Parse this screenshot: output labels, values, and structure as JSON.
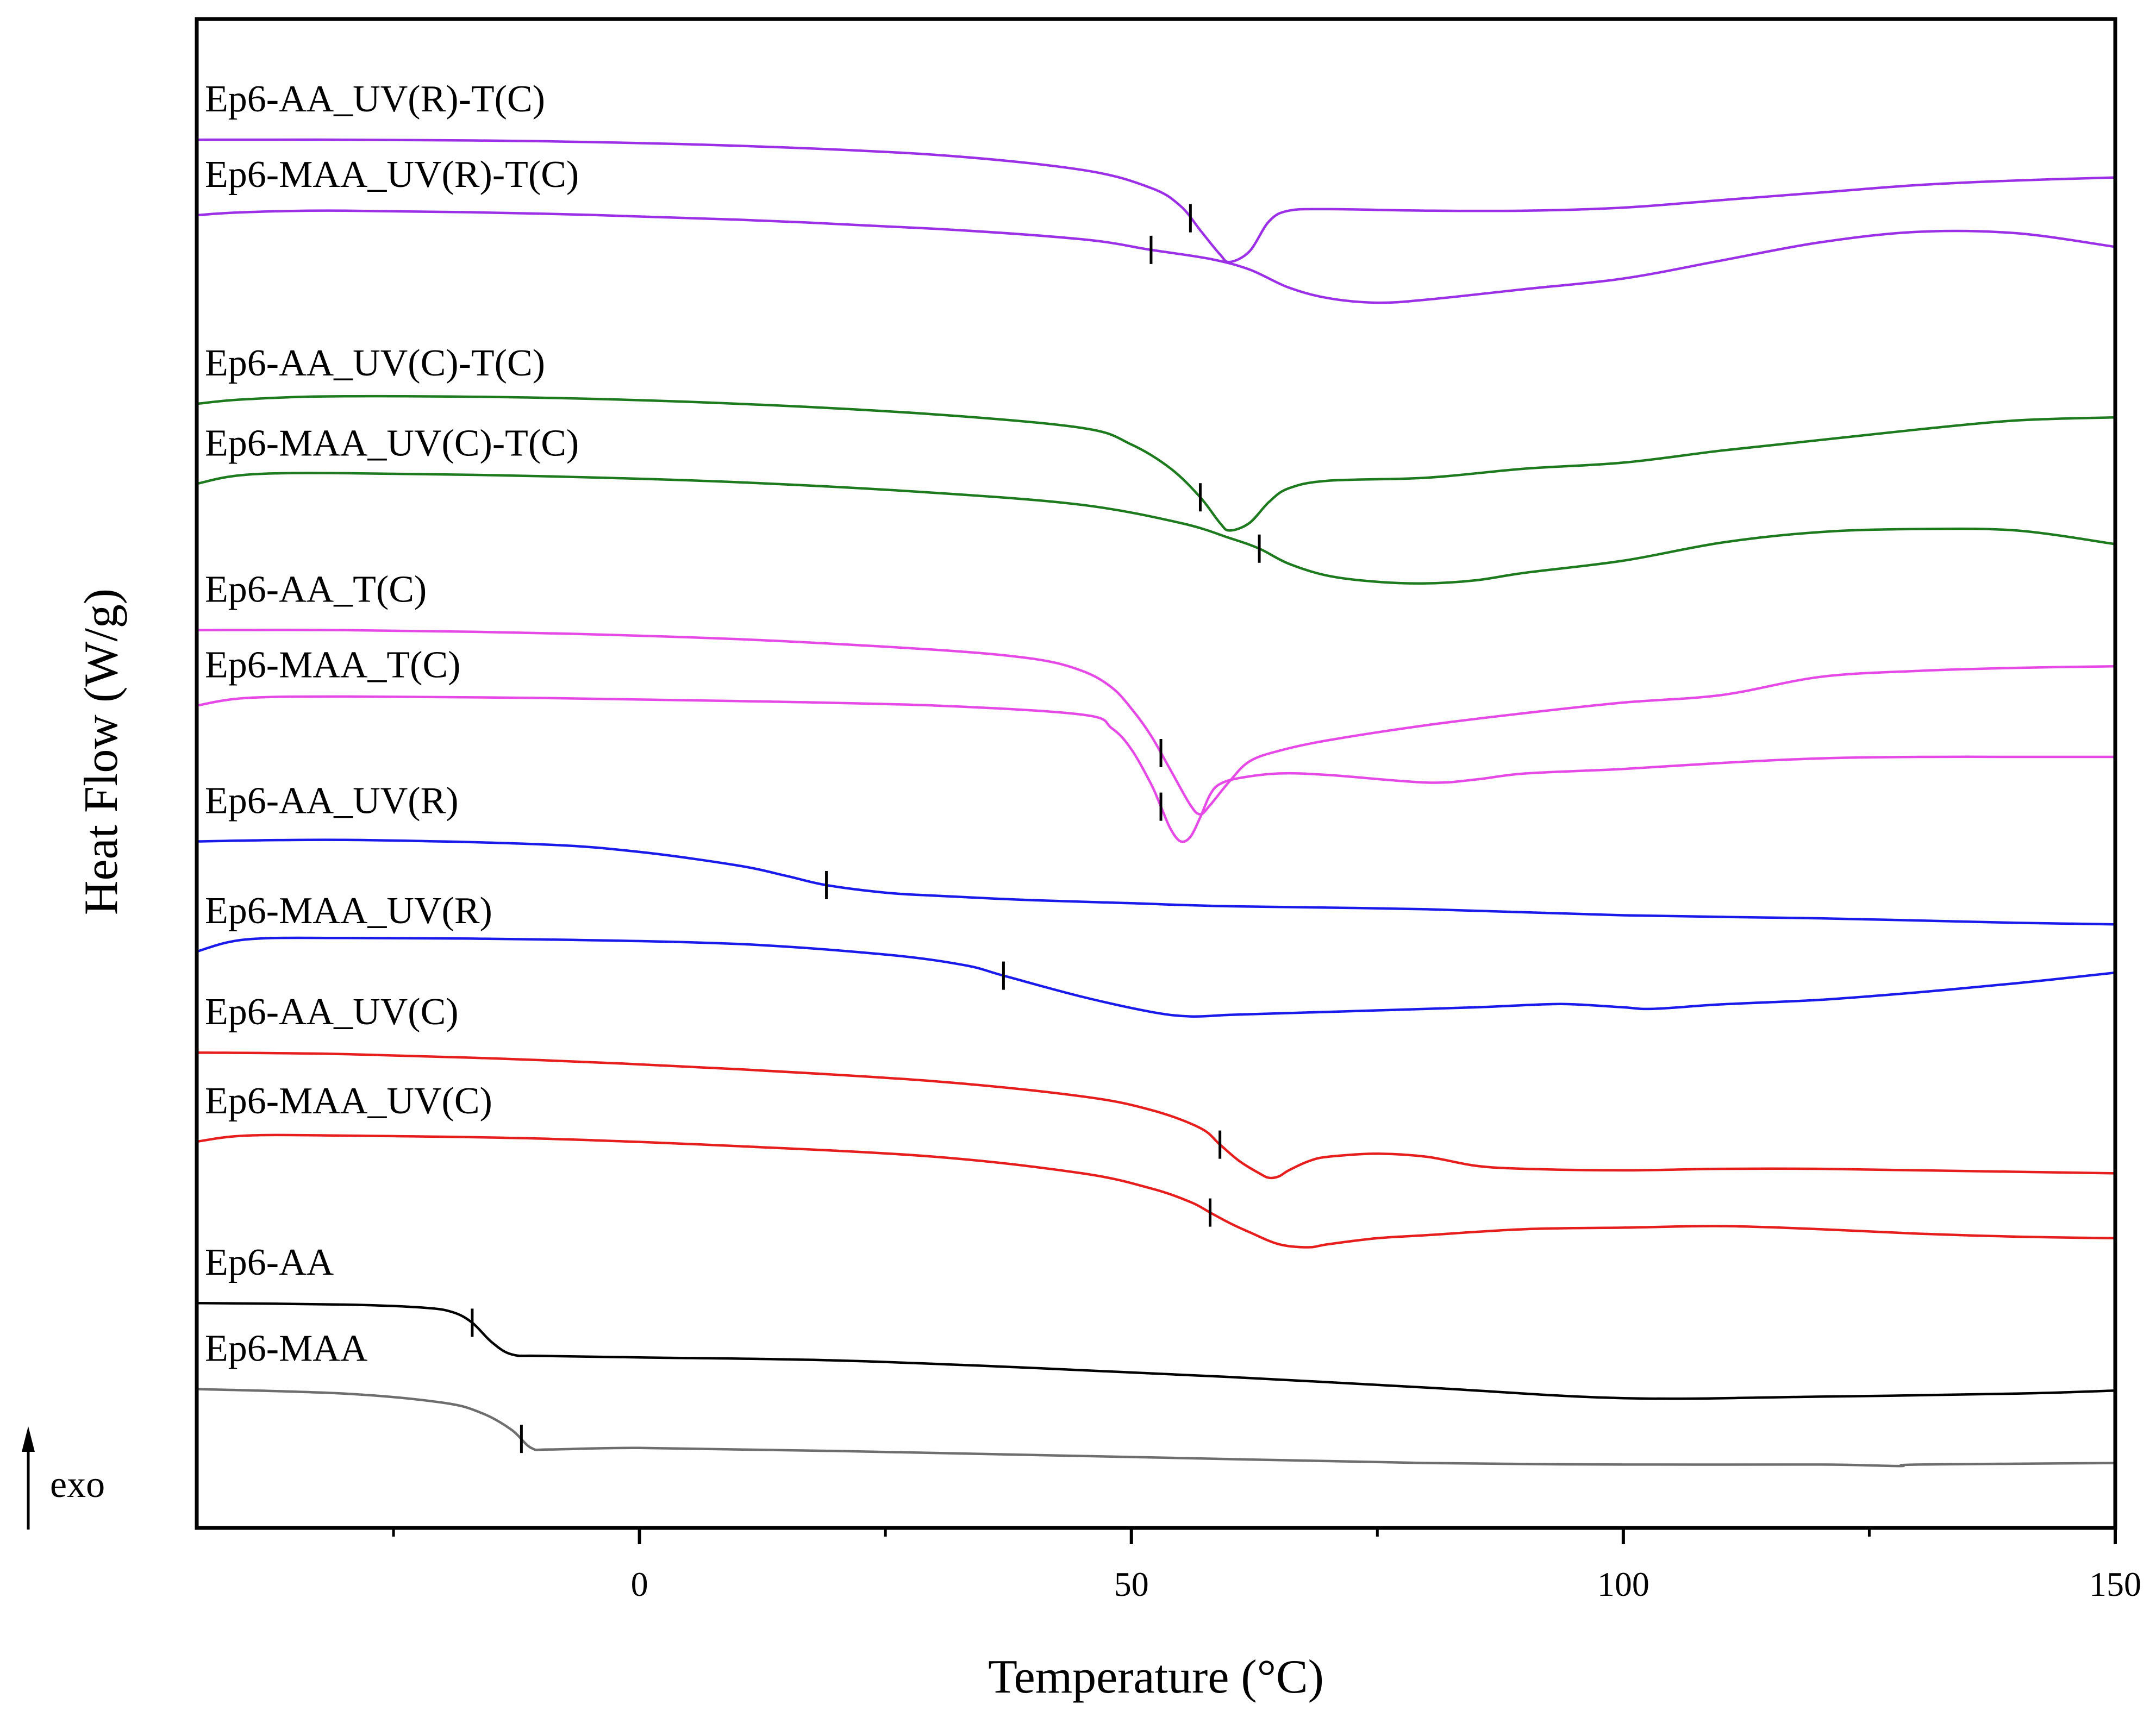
{
  "chart_data": {
    "type": "line",
    "xlabel": "Temperature (°C)",
    "ylabel": "Heat Flow (W/g)",
    "xlim": [
      -45,
      150
    ],
    "ylim": [
      0,
      100
    ],
    "xticks": [
      0,
      50,
      100,
      150
    ],
    "minor_xticks": [
      -25,
      25,
      75,
      125
    ],
    "grid": false,
    "legend": "none",
    "exo_label": "exo",
    "y_units": "arbitrary (stacked, offset curves)",
    "series": [
      {
        "name": "Ep6-AA_UV(R)-T(C)",
        "color": "#9b30e6",
        "x": [
          -45,
          -30,
          -10,
          10,
          30,
          45,
          52,
          55,
          57,
          59,
          60,
          62,
          64,
          66,
          70,
          80,
          90,
          100,
          110,
          120,
          130,
          140,
          150
        ],
        "y": [
          92.0,
          92.0,
          91.9,
          91.6,
          91.0,
          90.0,
          88.8,
          87.6,
          86.0,
          84.4,
          83.9,
          84.6,
          86.6,
          87.3,
          87.4,
          87.3,
          87.3,
          87.5,
          88.0,
          88.5,
          89.0,
          89.3,
          89.5
        ],
        "tg_x": 56
      },
      {
        "name": "Ep6-MAA_UV(R)-T(C)",
        "color": "#9b30e6",
        "x": [
          -45,
          -40,
          -30,
          -10,
          10,
          30,
          45,
          52,
          58,
          62,
          66,
          70,
          75,
          80,
          90,
          100,
          110,
          120,
          130,
          140,
          150
        ],
        "y": [
          87.0,
          87.2,
          87.3,
          87.1,
          86.7,
          86.1,
          85.4,
          84.7,
          84.1,
          83.4,
          82.2,
          81.5,
          81.2,
          81.4,
          82.1,
          82.8,
          84.0,
          85.2,
          85.9,
          85.8,
          84.9
        ],
        "tg_x": 52
      },
      {
        "name": "Ep6-AA_UV(C)-T(C)",
        "color": "#1e7a1e",
        "x": [
          -45,
          -40,
          -30,
          -10,
          10,
          30,
          45,
          50,
          54,
          57,
          59,
          60,
          62,
          64,
          66,
          70,
          80,
          90,
          100,
          110,
          120,
          130,
          140,
          150
        ],
        "y": [
          74.5,
          74.8,
          75.0,
          74.9,
          74.5,
          73.8,
          72.9,
          71.8,
          70.2,
          68.3,
          66.6,
          66.1,
          66.6,
          68.0,
          68.9,
          69.4,
          69.6,
          70.2,
          70.6,
          71.4,
          72.1,
          72.8,
          73.4,
          73.6
        ],
        "tg_x": 57
      },
      {
        "name": "Ep6-MAA_UV(C)-T(C)",
        "color": "#1e7a1e",
        "x": [
          -45,
          -40,
          -30,
          -10,
          10,
          30,
          45,
          55,
          60,
          63,
          66,
          70,
          75,
          80,
          85,
          90,
          100,
          110,
          120,
          130,
          140,
          150
        ],
        "y": [
          69.2,
          69.8,
          69.9,
          69.7,
          69.3,
          68.6,
          67.8,
          66.6,
          65.6,
          64.9,
          63.9,
          63.1,
          62.7,
          62.6,
          62.8,
          63.3,
          64.1,
          65.3,
          66.0,
          66.2,
          66.1,
          65.2
        ],
        "tg_x": 63
      },
      {
        "name": "Ep6-AA_T(C)",
        "color": "#e64ae6",
        "x": [
          -45,
          -30,
          -10,
          10,
          30,
          40,
          45,
          48,
          50,
          52,
          54,
          56,
          57,
          58,
          60,
          62,
          65,
          70,
          80,
          90,
          100,
          110,
          120,
          130,
          140,
          150
        ],
        "y": [
          59.5,
          59.5,
          59.3,
          58.9,
          58.2,
          57.6,
          56.8,
          55.7,
          54.3,
          52.5,
          50.2,
          47.9,
          47.3,
          47.9,
          49.5,
          50.8,
          51.5,
          52.2,
          53.2,
          54.0,
          54.7,
          55.2,
          56.4,
          56.8,
          57.0,
          57.1
        ],
        "tg_x": 53
      },
      {
        "name": "Ep6-MAA_T(C)",
        "color": "#e64ae6",
        "x": [
          -45,
          -40,
          -30,
          -10,
          10,
          30,
          45,
          48,
          50,
          52,
          53,
          54,
          55,
          56,
          57,
          58,
          59,
          61,
          65,
          70,
          80,
          85,
          90,
          100,
          110,
          120,
          130,
          140,
          150
        ],
        "y": [
          54.5,
          55.0,
          55.1,
          55.0,
          54.8,
          54.5,
          53.9,
          53.0,
          51.6,
          49.3,
          47.8,
          46.3,
          45.5,
          45.8,
          47.1,
          48.6,
          49.3,
          49.7,
          50.0,
          49.9,
          49.4,
          49.6,
          50.0,
          50.3,
          50.7,
          51.0,
          51.1,
          51.1,
          51.1
        ],
        "tg_x": 53
      },
      {
        "name": "Ep6-AA_UV(R)",
        "color": "#1a1aeb",
        "x": [
          -45,
          -30,
          -10,
          0,
          10,
          15,
          19,
          25,
          30,
          40,
          50,
          60,
          80,
          100,
          120,
          140,
          150
        ],
        "y": [
          45.5,
          45.6,
          45.3,
          44.8,
          43.9,
          43.2,
          42.6,
          42.1,
          41.9,
          41.6,
          41.4,
          41.2,
          41.0,
          40.6,
          40.4,
          40.1,
          40.0
        ],
        "tg_x": 19
      },
      {
        "name": "Ep6-MAA_UV(R)",
        "color": "#1a1aeb",
        "x": [
          -45,
          -40,
          -30,
          -10,
          10,
          25,
          33,
          37,
          45,
          52,
          56,
          60,
          65,
          75,
          85,
          92,
          95,
          100,
          103,
          110,
          120,
          130,
          140,
          150
        ],
        "y": [
          38.2,
          39.0,
          39.1,
          39.0,
          38.7,
          38.0,
          37.3,
          36.6,
          35.2,
          34.2,
          33.9,
          34.0,
          34.1,
          34.3,
          34.5,
          34.7,
          34.7,
          34.5,
          34.4,
          34.7,
          35.0,
          35.5,
          36.1,
          36.8
        ],
        "tg_x": 37
      },
      {
        "name": "Ep6-AA_UV(C)",
        "color": "#e61e1e",
        "x": [
          -45,
          -30,
          -10,
          10,
          30,
          45,
          52,
          57,
          59,
          61,
          63,
          64,
          65,
          66,
          68,
          70,
          75,
          80,
          85,
          90,
          100,
          110,
          120,
          130,
          140,
          150
        ],
        "y": [
          31.5,
          31.4,
          31.0,
          30.4,
          29.6,
          28.6,
          27.7,
          26.5,
          25.4,
          24.3,
          23.5,
          23.2,
          23.3,
          23.7,
          24.3,
          24.6,
          24.8,
          24.6,
          24.0,
          23.8,
          23.7,
          23.8,
          23.8,
          23.7,
          23.6,
          23.5
        ],
        "tg_x": 59
      },
      {
        "name": "Ep6-MAA_UV(C)",
        "color": "#e61e1e",
        "x": [
          -45,
          -40,
          -30,
          -10,
          10,
          30,
          45,
          52,
          56,
          58,
          60,
          62,
          65,
          68,
          70,
          75,
          80,
          90,
          100,
          110,
          120,
          130,
          140,
          150
        ],
        "y": [
          25.6,
          26.0,
          26.0,
          25.8,
          25.3,
          24.6,
          23.5,
          22.5,
          21.6,
          20.9,
          20.2,
          19.6,
          18.8,
          18.6,
          18.8,
          19.2,
          19.4,
          19.8,
          19.9,
          20.0,
          19.8,
          19.5,
          19.3,
          19.2
        ],
        "tg_x": 58
      },
      {
        "name": "Ep6-AA",
        "color": "#000000",
        "x": [
          -45,
          -30,
          -22,
          -19,
          -17,
          -15,
          -13,
          -10,
          0,
          20,
          40,
          60,
          80,
          100,
          120,
          140,
          150
        ],
        "y": [
          14.9,
          14.8,
          14.6,
          14.3,
          13.6,
          12.3,
          11.5,
          11.4,
          11.3,
          11.1,
          10.6,
          10.0,
          9.3,
          8.6,
          8.7,
          8.9,
          9.1
        ],
        "tg_x": -17
      },
      {
        "name": "Ep6-MAA",
        "color": "#6e6e6e",
        "x": [
          -45,
          -30,
          -20,
          -16,
          -13,
          -11,
          -9,
          0,
          20,
          50,
          80,
          100,
          120,
          128,
          130,
          150
        ],
        "y": [
          9.2,
          8.9,
          8.3,
          7.6,
          6.5,
          5.3,
          5.2,
          5.3,
          5.1,
          4.7,
          4.3,
          4.2,
          4.2,
          4.1,
          4.2,
          4.3
        ],
        "tg_x": -12
      }
    ]
  }
}
